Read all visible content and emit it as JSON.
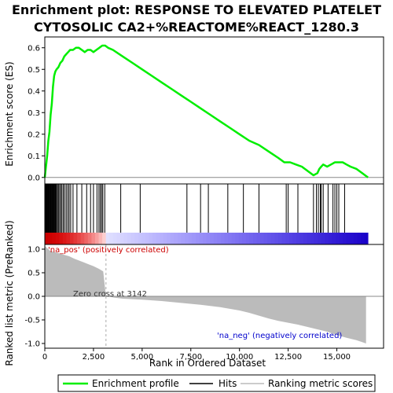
{
  "chart_data": {
    "type": "line",
    "title_lines": [
      "Enrichment plot: RESPONSE TO ELEVATED PLATELET",
      "CYTOSOLIC CA2+%REACTOME%REACT_1280.3"
    ],
    "xlabel": "Rank in Ordered Dataset",
    "ylabel_top": "Enrichment score (ES)",
    "ylabel_bottom": "Ranked list metric (PreRanked)",
    "xlim": [
      0,
      17400
    ],
    "x_ticks": [
      0,
      2500,
      5000,
      7500,
      10000,
      12500,
      15000
    ],
    "x_tick_labels": [
      "0",
      "2,500",
      "5,000",
      "7,500",
      "10,000",
      "12,500",
      "15,000"
    ],
    "es_ylim": [
      -0.03,
      0.65
    ],
    "es_ticks": [
      0.0,
      0.1,
      0.2,
      0.3,
      0.4,
      0.5,
      0.6
    ],
    "es_tick_labels": [
      "0.0",
      "0.1",
      "0.2",
      "0.3",
      "0.4",
      "0.5",
      "0.6"
    ],
    "metric_ylim": [
      -1.1,
      1.1
    ],
    "metric_ticks": [
      1.0,
      0.5,
      0.0,
      -0.5,
      -1.0
    ],
    "metric_tick_labels": [
      "1.0",
      "0.5",
      "0.0",
      "-0.5",
      "-1.0"
    ],
    "enrichment_profile": {
      "name": "Enrichment profile",
      "color": "#00ee00",
      "x": [
        0,
        60,
        120,
        180,
        240,
        300,
        360,
        420,
        480,
        540,
        600,
        700,
        800,
        900,
        1000,
        1100,
        1200,
        1300,
        1450,
        1600,
        1750,
        1900,
        2050,
        2200,
        2350,
        2500,
        2650,
        2800,
        2950,
        3100,
        3250,
        3500,
        4000,
        4500,
        5000,
        5500,
        6000,
        6500,
        7000,
        7500,
        8000,
        8500,
        9000,
        9500,
        10000,
        10500,
        11000,
        11500,
        12000,
        12300,
        12600,
        12900,
        13200,
        13500,
        13800,
        14000,
        14100,
        14200,
        14300,
        14500,
        14700,
        14900,
        15100,
        15300,
        15500,
        15700,
        16000,
        16300,
        16600
      ],
      "y": [
        0.0,
        0.05,
        0.1,
        0.17,
        0.21,
        0.29,
        0.34,
        0.42,
        0.47,
        0.49,
        0.5,
        0.51,
        0.53,
        0.54,
        0.56,
        0.57,
        0.58,
        0.59,
        0.59,
        0.6,
        0.6,
        0.59,
        0.58,
        0.59,
        0.59,
        0.58,
        0.59,
        0.6,
        0.61,
        0.61,
        0.6,
        0.59,
        0.56,
        0.53,
        0.5,
        0.47,
        0.44,
        0.41,
        0.38,
        0.35,
        0.32,
        0.29,
        0.26,
        0.23,
        0.2,
        0.17,
        0.15,
        0.12,
        0.09,
        0.07,
        0.07,
        0.06,
        0.05,
        0.03,
        0.01,
        0.02,
        0.04,
        0.05,
        0.06,
        0.05,
        0.06,
        0.07,
        0.07,
        0.07,
        0.06,
        0.05,
        0.04,
        0.02,
        0.0
      ]
    },
    "hits": {
      "name": "Hits",
      "x": [
        20,
        45,
        70,
        95,
        120,
        150,
        175,
        200,
        230,
        260,
        290,
        320,
        350,
        380,
        410,
        440,
        470,
        500,
        530,
        560,
        600,
        650,
        700,
        760,
        820,
        880,
        950,
        1020,
        1100,
        1180,
        1250,
        1330,
        1450,
        1650,
        1900,
        2150,
        2350,
        2500,
        2680,
        2780,
        2850,
        2920,
        2980,
        3080,
        3900,
        4900,
        7300,
        8000,
        8400,
        9400,
        10200,
        11000,
        12400,
        12500,
        13000,
        13800,
        13950,
        14050,
        14150,
        14200,
        14300,
        14550,
        14800,
        14900,
        15000,
        15100,
        15400
      ]
    },
    "ranking_metric": {
      "name": "Ranking metric scores",
      "x": [
        0,
        250,
        500,
        750,
        1000,
        1250,
        1500,
        1750,
        2000,
        2250,
        2500,
        2750,
        3000,
        3142,
        3300,
        3600,
        4000,
        5000,
        6000,
        7000,
        8000,
        9000,
        10000,
        10500,
        11000,
        11500,
        12000,
        12500,
        13000,
        13500,
        14000,
        14500,
        15000,
        15500,
        16000,
        16300,
        16500
      ],
      "y": [
        1.07,
        0.97,
        0.94,
        0.91,
        0.88,
        0.85,
        0.8,
        0.76,
        0.72,
        0.68,
        0.64,
        0.59,
        0.53,
        0.0,
        -0.01,
        -0.03,
        -0.05,
        -0.07,
        -0.1,
        -0.14,
        -0.18,
        -0.23,
        -0.3,
        -0.35,
        -0.41,
        -0.47,
        -0.52,
        -0.56,
        -0.6,
        -0.65,
        -0.7,
        -0.75,
        -0.82,
        -0.88,
        -0.93,
        -0.97,
        -1.0
      ]
    },
    "annotations": {
      "pos_label": "'na_pos' (positively correlated)",
      "neg_label": "'na_neg' (negatively correlated)",
      "zero_cross": "Zero cross at 3142",
      "zero_cross_x": 3142,
      "pos_color": "#cc0000",
      "neg_color": "#0000cc"
    },
    "legend": {
      "placement": "bottom",
      "items": [
        {
          "label": "Enrichment profile",
          "color": "#00ee00"
        },
        {
          "label": "Hits",
          "color": "#000000"
        },
        {
          "label": "Ranking metric scores",
          "color": "#bbbbbb"
        }
      ]
    },
    "grid": false
  }
}
